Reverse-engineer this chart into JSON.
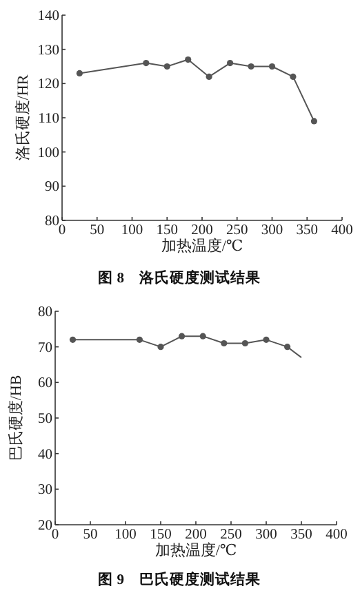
{
  "chart_data": [
    {
      "type": "line",
      "title": "图 8　洛氏硬度测试结果",
      "xlabel": "加热温度/℃",
      "ylabel": "洛氏硬度/HR",
      "xlim": [
        0,
        400
      ],
      "xticks": [
        0,
        50,
        100,
        150,
        200,
        250,
        300,
        350,
        400
      ],
      "ylim": [
        80,
        140
      ],
      "yticks": [
        80,
        90,
        100,
        110,
        120,
        130,
        140
      ],
      "grid": false,
      "series": [
        {
          "color": "#555555",
          "marker": "circle",
          "x": [
            25,
            120,
            150,
            180,
            210,
            240,
            270,
            300,
            330,
            360
          ],
          "values": [
            123,
            126,
            125,
            127,
            122,
            126,
            125,
            125,
            122,
            109
          ]
        }
      ]
    },
    {
      "type": "line",
      "title": "图 9　巴氏硬度测试结果",
      "xlabel": "加热温度/℃",
      "ylabel": "巴氏硬度/HB",
      "xlim": [
        0,
        400
      ],
      "xticks": [
        0,
        50,
        100,
        150,
        200,
        250,
        300,
        350,
        400
      ],
      "ylim": [
        20,
        80
      ],
      "yticks": [
        20,
        30,
        40,
        50,
        60,
        70,
        80
      ],
      "grid": false,
      "series": [
        {
          "color": "#555555",
          "marker": "circle",
          "x": [
            25,
            120,
            150,
            180,
            210,
            240,
            270,
            300,
            330
          ],
          "values": [
            72,
            72,
            70,
            73,
            73,
            71,
            71,
            72,
            70
          ]
        },
        {
          "color": "#555555",
          "marker": "none",
          "x": [
            330,
            350
          ],
          "values": [
            70,
            67
          ]
        }
      ]
    }
  ]
}
